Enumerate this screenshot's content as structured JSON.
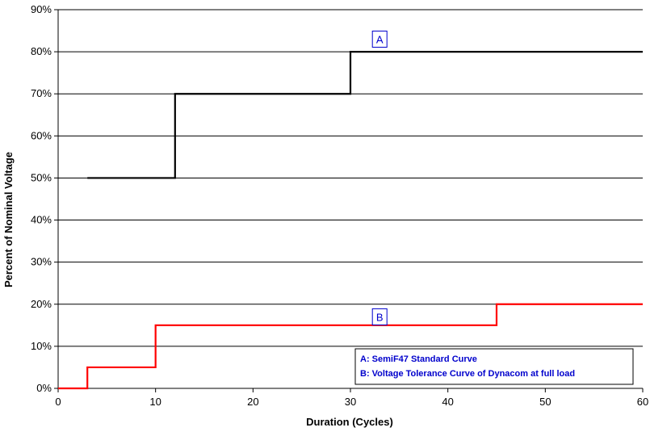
{
  "chart_data": {
    "type": "line",
    "step": true,
    "xlabel": "Duration (Cycles)",
    "ylabel": "Percent of Nominal Voltage",
    "xlim": [
      0,
      60
    ],
    "ylim": [
      0,
      90
    ],
    "x_ticks": [
      0,
      10,
      20,
      30,
      40,
      50,
      60
    ],
    "y_ticks": [
      0,
      10,
      20,
      30,
      40,
      50,
      60,
      70,
      80,
      90
    ],
    "y_tick_labels": [
      "0%",
      "10%",
      "20%",
      "30%",
      "40%",
      "50%",
      "60%",
      "70%",
      "80%",
      "90%"
    ],
    "grid": "horizontal",
    "series": [
      {
        "label": "A",
        "color": "#000000",
        "x": [
          3,
          12,
          12,
          30,
          30,
          60
        ],
        "y": [
          50,
          50,
          70,
          70,
          80,
          80
        ],
        "annotation": {
          "text": "A",
          "x": 33,
          "y": 83
        }
      },
      {
        "label": "B",
        "color": "#ff0000",
        "x": [
          0,
          3,
          3,
          10,
          10,
          45,
          45,
          60
        ],
        "y": [
          0,
          0,
          5,
          5,
          15,
          15,
          20,
          20
        ],
        "annotation": {
          "text": "B",
          "x": 33,
          "y": 17
        }
      }
    ],
    "legend": {
      "position": "bottom-right",
      "entries": [
        "A: SemiF47 Standard Curve",
        "B: Voltage Tolerance Curve of Dynacom at full load"
      ],
      "text_color": "#0000cc"
    }
  }
}
